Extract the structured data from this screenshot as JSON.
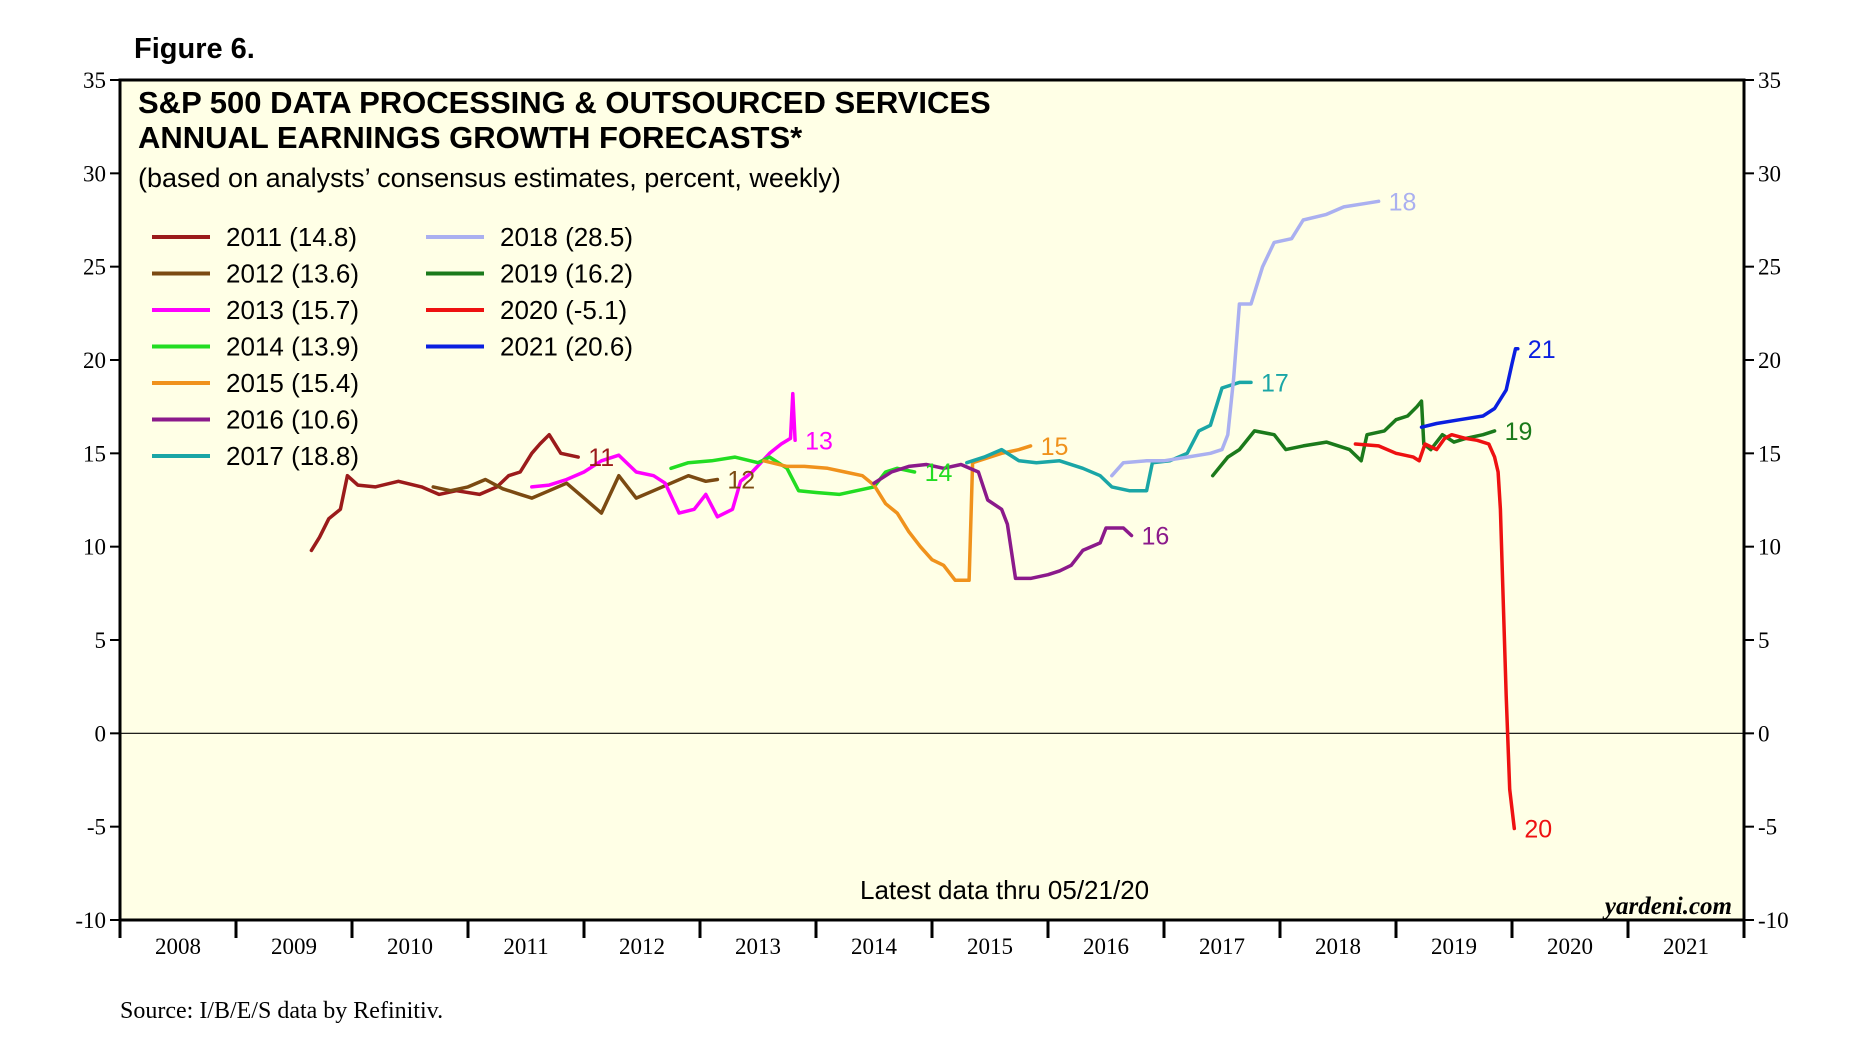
{
  "figure_label": "Figure 6.",
  "source": "Source: I/B/E/S data by Refinitiv.",
  "watermark": "yardeni.com",
  "chart_data": {
    "type": "line",
    "title_lines": [
      "S&P 500 DATA PROCESSING & OUTSOURCED SERVICES",
      "ANNUAL EARNINGS GROWTH FORECASTS*"
    ],
    "subtitle": "(based on analysts’ consensus estimates, percent, weekly)",
    "note": "Latest data thru 05/21/20",
    "ylim": [
      -10,
      35
    ],
    "yticks": [
      -10,
      -5,
      0,
      5,
      10,
      15,
      20,
      25,
      30,
      35
    ],
    "xlim": [
      2008,
      2022
    ],
    "xticklabels": [
      "2008",
      "2009",
      "2010",
      "2011",
      "2012",
      "2013",
      "2014",
      "2015",
      "2016",
      "2017",
      "2018",
      "2019",
      "2020",
      "2021"
    ],
    "legend_position": "top-left",
    "series": [
      {
        "name": "2011 (14.8)",
        "end_label": "11",
        "color": "#9b1b1b",
        "points": [
          [
            2009.65,
            9.8
          ],
          [
            2009.72,
            10.5
          ],
          [
            2009.8,
            11.5
          ],
          [
            2009.9,
            12
          ],
          [
            2009.96,
            13.8
          ],
          [
            2010.05,
            13.3
          ],
          [
            2010.2,
            13.2
          ],
          [
            2010.4,
            13.5
          ],
          [
            2010.6,
            13.2
          ],
          [
            2010.75,
            12.8
          ],
          [
            2010.9,
            13
          ],
          [
            2011.1,
            12.8
          ],
          [
            2011.25,
            13.2
          ],
          [
            2011.35,
            13.8
          ],
          [
            2011.45,
            14
          ],
          [
            2011.55,
            15
          ],
          [
            2011.62,
            15.5
          ],
          [
            2011.7,
            16
          ],
          [
            2011.8,
            15
          ],
          [
            2011.95,
            14.8
          ]
        ]
      },
      {
        "name": "2012 (13.6)",
        "end_label": "12",
        "color": "#7b4a12",
        "points": [
          [
            2010.7,
            13.2
          ],
          [
            2010.85,
            13
          ],
          [
            2011,
            13.2
          ],
          [
            2011.15,
            13.6
          ],
          [
            2011.3,
            13.1
          ],
          [
            2011.45,
            12.8
          ],
          [
            2011.55,
            12.6
          ],
          [
            2011.7,
            13
          ],
          [
            2011.85,
            13.4
          ],
          [
            2012,
            12.6
          ],
          [
            2012.15,
            11.8
          ],
          [
            2012.3,
            13.8
          ],
          [
            2012.45,
            12.6
          ],
          [
            2012.6,
            13
          ],
          [
            2012.75,
            13.4
          ],
          [
            2012.9,
            13.8
          ],
          [
            2013.05,
            13.5
          ],
          [
            2013.15,
            13.6
          ]
        ]
      },
      {
        "name": "2013 (15.7)",
        "end_label": "13",
        "color": "#ff00ff",
        "points": [
          [
            2011.55,
            13.2
          ],
          [
            2011.7,
            13.3
          ],
          [
            2011.85,
            13.6
          ],
          [
            2012,
            14
          ],
          [
            2012.15,
            14.6
          ],
          [
            2012.3,
            14.9
          ],
          [
            2012.45,
            14
          ],
          [
            2012.6,
            13.8
          ],
          [
            2012.7,
            13.4
          ],
          [
            2012.82,
            11.8
          ],
          [
            2012.95,
            12
          ],
          [
            2013.05,
            12.8
          ],
          [
            2013.15,
            11.6
          ],
          [
            2013.28,
            12
          ],
          [
            2013.35,
            13.5
          ],
          [
            2013.45,
            14
          ],
          [
            2013.6,
            15
          ],
          [
            2013.7,
            15.5
          ],
          [
            2013.78,
            15.8
          ],
          [
            2013.8,
            18.2
          ],
          [
            2013.82,
            15.7
          ]
        ]
      },
      {
        "name": "2014 (13.9)",
        "end_label": "14",
        "color": "#22dd22",
        "points": [
          [
            2012.75,
            14.2
          ],
          [
            2012.9,
            14.5
          ],
          [
            2013.1,
            14.6
          ],
          [
            2013.3,
            14.8
          ],
          [
            2013.5,
            14.5
          ],
          [
            2013.6,
            14.8
          ],
          [
            2013.75,
            14.2
          ],
          [
            2013.85,
            13
          ],
          [
            2014,
            12.9
          ],
          [
            2014.2,
            12.8
          ],
          [
            2014.35,
            13
          ],
          [
            2014.5,
            13.2
          ],
          [
            2014.6,
            14
          ],
          [
            2014.7,
            14.2
          ],
          [
            2014.85,
            14
          ]
        ]
      },
      {
        "name": "2015 (15.4)",
        "end_label": "15",
        "color": "#f0921c",
        "points": [
          [
            2013.55,
            14.6
          ],
          [
            2013.75,
            14.3
          ],
          [
            2013.9,
            14.3
          ],
          [
            2014.1,
            14.2
          ],
          [
            2014.25,
            14
          ],
          [
            2014.4,
            13.8
          ],
          [
            2014.5,
            13.3
          ],
          [
            2014.6,
            12.3
          ],
          [
            2014.7,
            11.8
          ],
          [
            2014.8,
            10.8
          ],
          [
            2014.9,
            10
          ],
          [
            2015,
            9.3
          ],
          [
            2015.1,
            9
          ],
          [
            2015.2,
            8.2
          ],
          [
            2015.32,
            8.2
          ],
          [
            2015.35,
            14.5
          ],
          [
            2015.5,
            14.8
          ],
          [
            2015.6,
            15
          ],
          [
            2015.75,
            15.2
          ],
          [
            2015.85,
            15.4
          ]
        ]
      },
      {
        "name": "2016 (10.6)",
        "end_label": "16",
        "color": "#8b1a8b",
        "points": [
          [
            2014.5,
            13.4
          ],
          [
            2014.65,
            14
          ],
          [
            2014.8,
            14.3
          ],
          [
            2014.95,
            14.4
          ],
          [
            2015.1,
            14.2
          ],
          [
            2015.25,
            14.4
          ],
          [
            2015.4,
            14
          ],
          [
            2015.48,
            12.5
          ],
          [
            2015.6,
            12
          ],
          [
            2015.65,
            11.2
          ],
          [
            2015.72,
            8.3
          ],
          [
            2015.85,
            8.3
          ],
          [
            2016,
            8.5
          ],
          [
            2016.1,
            8.7
          ],
          [
            2016.2,
            9
          ],
          [
            2016.3,
            9.8
          ],
          [
            2016.45,
            10.2
          ],
          [
            2016.5,
            11
          ],
          [
            2016.65,
            11
          ],
          [
            2016.72,
            10.6
          ]
        ]
      },
      {
        "name": "2017 (18.8)",
        "end_label": "17",
        "color": "#1aa6a6",
        "points": [
          [
            2015.3,
            14.5
          ],
          [
            2015.45,
            14.8
          ],
          [
            2015.6,
            15.2
          ],
          [
            2015.75,
            14.6
          ],
          [
            2015.9,
            14.5
          ],
          [
            2016.1,
            14.6
          ],
          [
            2016.3,
            14.2
          ],
          [
            2016.45,
            13.8
          ],
          [
            2016.55,
            13.2
          ],
          [
            2016.7,
            13
          ],
          [
            2016.85,
            13
          ],
          [
            2016.9,
            14.5
          ],
          [
            2017.05,
            14.6
          ],
          [
            2017.2,
            15
          ],
          [
            2017.3,
            16.2
          ],
          [
            2017.4,
            16.5
          ],
          [
            2017.5,
            18.5
          ],
          [
            2017.65,
            18.8
          ],
          [
            2017.75,
            18.8
          ]
        ]
      },
      {
        "name": "2018 (28.5)",
        "end_label": "18",
        "color": "#aab0f0",
        "points": [
          [
            2016.55,
            13.8
          ],
          [
            2016.65,
            14.5
          ],
          [
            2016.85,
            14.6
          ],
          [
            2017,
            14.6
          ],
          [
            2017.2,
            14.8
          ],
          [
            2017.4,
            15
          ],
          [
            2017.5,
            15.2
          ],
          [
            2017.55,
            16
          ],
          [
            2017.6,
            19
          ],
          [
            2017.65,
            23
          ],
          [
            2017.75,
            23
          ],
          [
            2017.85,
            25
          ],
          [
            2017.95,
            26.3
          ],
          [
            2018.1,
            26.5
          ],
          [
            2018.2,
            27.5
          ],
          [
            2018.4,
            27.8
          ],
          [
            2018.55,
            28.2
          ],
          [
            2018.75,
            28.4
          ],
          [
            2018.85,
            28.5
          ]
        ]
      },
      {
        "name": "2019 (16.2)",
        "end_label": "19",
        "color": "#1b7a1b",
        "points": [
          [
            2017.42,
            13.8
          ],
          [
            2017.55,
            14.8
          ],
          [
            2017.65,
            15.2
          ],
          [
            2017.78,
            16.2
          ],
          [
            2017.95,
            16
          ],
          [
            2018.05,
            15.2
          ],
          [
            2018.2,
            15.4
          ],
          [
            2018.4,
            15.6
          ],
          [
            2018.6,
            15.2
          ],
          [
            2018.7,
            14.6
          ],
          [
            2018.75,
            16
          ],
          [
            2018.9,
            16.2
          ],
          [
            2019,
            16.8
          ],
          [
            2019.1,
            17
          ],
          [
            2019.18,
            17.5
          ],
          [
            2019.22,
            17.8
          ],
          [
            2019.24,
            15.5
          ],
          [
            2019.3,
            15.2
          ],
          [
            2019.4,
            16
          ],
          [
            2019.5,
            15.6
          ],
          [
            2019.6,
            15.8
          ],
          [
            2019.75,
            16
          ],
          [
            2019.85,
            16.2
          ]
        ]
      },
      {
        "name": "2020 (-5.1)",
        "end_label": "20",
        "color": "#ee1111",
        "points": [
          [
            2018.65,
            15.5
          ],
          [
            2018.85,
            15.4
          ],
          [
            2019,
            15
          ],
          [
            2019.15,
            14.8
          ],
          [
            2019.2,
            14.6
          ],
          [
            2019.25,
            15.5
          ],
          [
            2019.35,
            15.2
          ],
          [
            2019.42,
            15.8
          ],
          [
            2019.48,
            16
          ],
          [
            2019.6,
            15.8
          ],
          [
            2019.7,
            15.7
          ],
          [
            2019.8,
            15.5
          ],
          [
            2019.85,
            14.8
          ],
          [
            2019.88,
            14
          ],
          [
            2019.9,
            12
          ],
          [
            2019.92,
            8
          ],
          [
            2019.95,
            2
          ],
          [
            2019.98,
            -3
          ],
          [
            2020.02,
            -5.1
          ]
        ]
      },
      {
        "name": "2021 (20.6)",
        "end_label": "21",
        "color": "#0a1fe0",
        "points": [
          [
            2019.22,
            16.4
          ],
          [
            2019.35,
            16.6
          ],
          [
            2019.55,
            16.8
          ],
          [
            2019.75,
            17
          ],
          [
            2019.85,
            17.4
          ],
          [
            2019.95,
            18.4
          ],
          [
            2020,
            19.8
          ],
          [
            2020.03,
            20.6
          ],
          [
            2020.05,
            20.6
          ]
        ]
      }
    ]
  }
}
